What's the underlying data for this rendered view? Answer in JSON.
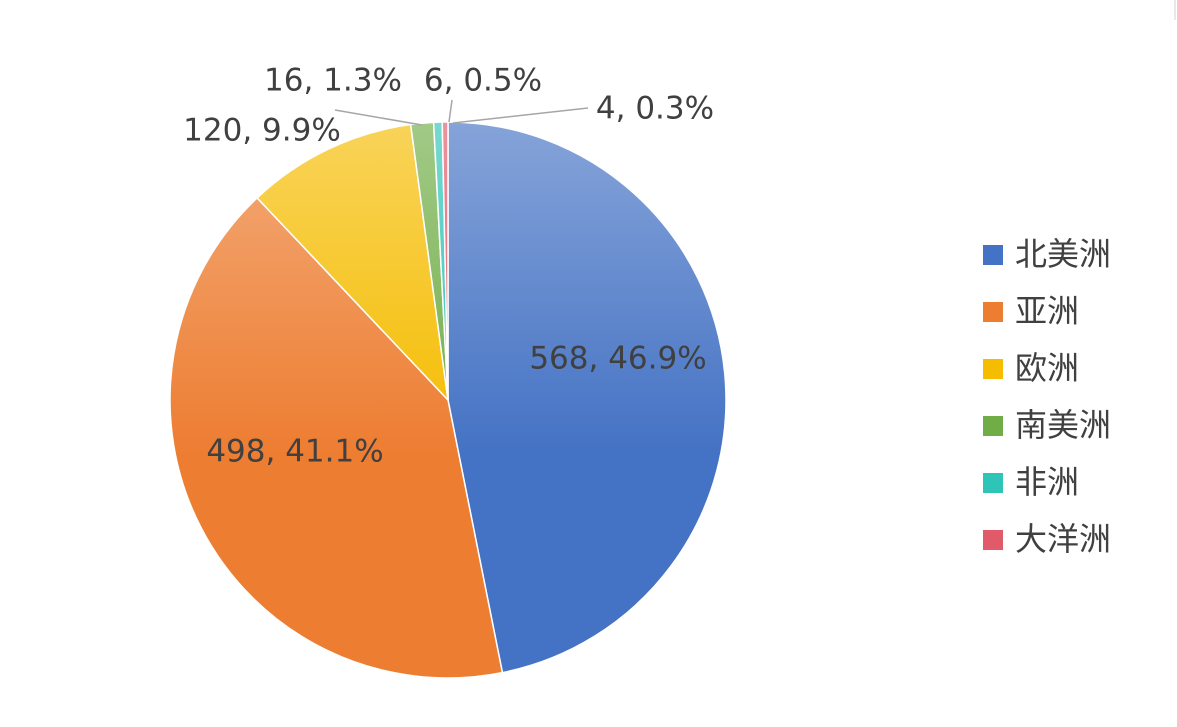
{
  "chart_data": {
    "type": "pie",
    "categories": [
      "北美洲",
      "亚洲",
      "欧洲",
      "南美洲",
      "非洲",
      "大洋洲"
    ],
    "values": [
      568,
      498,
      120,
      16,
      6,
      4
    ],
    "value_labels": [
      "568, 46.9%",
      "498, 41.1%",
      "120, 9.9%",
      "16, 1.3%",
      "6, 0.5%",
      "4, 0.3%"
    ],
    "colors": [
      "#4472c4",
      "#ed7d31",
      "#f5bc00",
      "#70ad47",
      "#2ec4b6",
      "#e05a6a"
    ],
    "legend": "right"
  }
}
